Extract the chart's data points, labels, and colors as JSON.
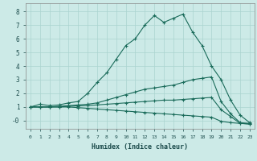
{
  "xlabel": "Humidex (Indice chaleur)",
  "bg_color": "#cceae7",
  "grid_color": "#aad4d0",
  "line_color": "#1a6b5a",
  "xlim": [
    -0.5,
    23.5
  ],
  "ylim": [
    -0.6,
    8.6
  ],
  "yticks": [
    0,
    1,
    2,
    3,
    4,
    5,
    6,
    7,
    8
  ],
  "ytick_labels": [
    "-0",
    "1",
    "2",
    "3",
    "4",
    "5",
    "6",
    "7",
    "8"
  ],
  "xticks": [
    0,
    1,
    2,
    3,
    4,
    5,
    6,
    7,
    8,
    9,
    10,
    11,
    12,
    13,
    14,
    15,
    16,
    17,
    18,
    19,
    20,
    21,
    22,
    23
  ],
  "series": [
    {
      "x": [
        0,
        1,
        2,
        3,
        4,
        5,
        6,
        7,
        8,
        9,
        10,
        11,
        12,
        13,
        14,
        15,
        16,
        17,
        18,
        19,
        20,
        21,
        22,
        23
      ],
      "y": [
        1.0,
        1.2,
        1.1,
        1.15,
        1.3,
        1.4,
        2.0,
        2.8,
        3.5,
        4.5,
        5.5,
        6.0,
        7.0,
        7.7,
        7.2,
        7.5,
        7.8,
        6.5,
        5.5,
        4.0,
        3.0,
        1.5,
        0.4,
        -0.15
      ]
    },
    {
      "x": [
        0,
        1,
        2,
        3,
        4,
        5,
        6,
        7,
        8,
        9,
        10,
        11,
        12,
        13,
        14,
        15,
        16,
        17,
        18,
        19,
        20,
        21,
        22,
        23
      ],
      "y": [
        1.0,
        1.0,
        1.0,
        1.05,
        1.1,
        1.15,
        1.2,
        1.3,
        1.5,
        1.7,
        1.9,
        2.1,
        2.3,
        2.4,
        2.5,
        2.6,
        2.8,
        3.0,
        3.1,
        3.2,
        1.4,
        0.5,
        -0.15,
        -0.2
      ]
    },
    {
      "x": [
        0,
        1,
        2,
        3,
        4,
        5,
        6,
        7,
        8,
        9,
        10,
        11,
        12,
        13,
        14,
        15,
        16,
        17,
        18,
        19,
        20,
        21,
        22,
        23
      ],
      "y": [
        1.0,
        1.0,
        1.0,
        1.0,
        1.05,
        1.08,
        1.1,
        1.15,
        1.2,
        1.25,
        1.3,
        1.35,
        1.4,
        1.45,
        1.5,
        1.5,
        1.55,
        1.6,
        1.65,
        1.7,
        0.8,
        0.3,
        -0.2,
        -0.25
      ]
    },
    {
      "x": [
        0,
        1,
        2,
        3,
        4,
        5,
        6,
        7,
        8,
        9,
        10,
        11,
        12,
        13,
        14,
        15,
        16,
        17,
        18,
        19,
        20,
        21,
        22,
        23
      ],
      "y": [
        1.0,
        1.0,
        1.0,
        1.0,
        1.0,
        0.95,
        0.9,
        0.85,
        0.8,
        0.75,
        0.7,
        0.65,
        0.6,
        0.55,
        0.5,
        0.45,
        0.4,
        0.35,
        0.3,
        0.25,
        -0.05,
        -0.15,
        -0.2,
        -0.25
      ]
    }
  ]
}
